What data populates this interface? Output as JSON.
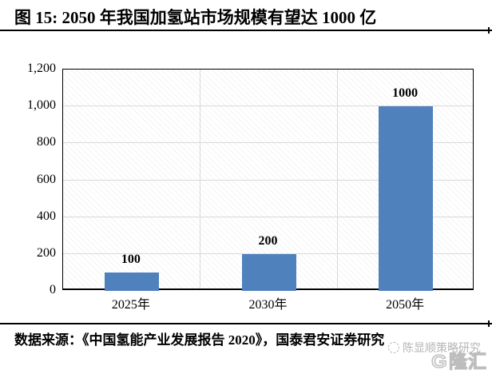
{
  "header": {
    "title": "图 15:  2050 年我国加氢站市场规模有望达 1000 亿"
  },
  "chart_data": {
    "type": "bar",
    "title": "",
    "xlabel": "",
    "ylabel": "",
    "categories": [
      "2025年",
      "2030年",
      "2050年"
    ],
    "values": [
      100,
      200,
      1000
    ],
    "data_labels": [
      "100",
      "200",
      "1000"
    ],
    "ylim": [
      0,
      1200
    ],
    "ytick_interval": 200,
    "yticks": [
      "0",
      "200",
      "400",
      "600",
      "800",
      "1,000",
      "1,200"
    ],
    "grid": "horizontal and vertical light-gray gridlines, hatched plot background",
    "legend": "none",
    "bar_color": "#4F81BD"
  },
  "footer": {
    "source": "数据来源：《中国氢能产业发展报告 2020》，国泰君安证券研究"
  },
  "watermark": {
    "text": "陈显顺策略研究",
    "logo_mark": "G",
    "logo_text": "隆汇"
  }
}
